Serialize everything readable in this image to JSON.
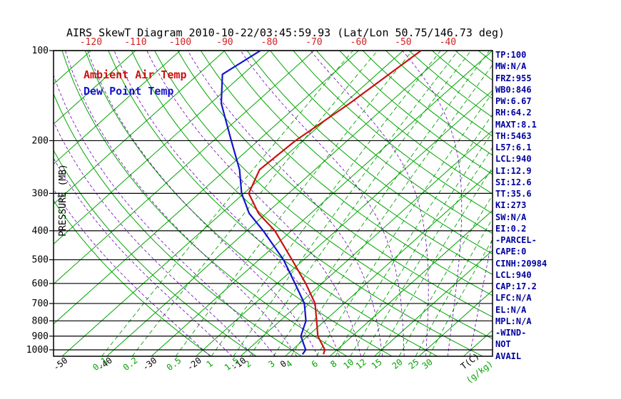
{
  "title": "AIRS SkewT Diagram 2010-10-22/03:45:59.93 (Lat/Lon 50.75/146.73 deg)",
  "legend": {
    "ambient": "Ambient Air Temp",
    "dewpoint": "Dew Point Temp"
  },
  "axes": {
    "pressure_label": "PRESSURE (MB)",
    "pressure_ticks": [
      100,
      200,
      300,
      400,
      500,
      600,
      700,
      800,
      900,
      1000
    ],
    "top_temp_ticks": [
      -120,
      -110,
      -100,
      -90,
      -80,
      -70,
      -60,
      -50,
      -40
    ],
    "bottom_temp_ticks": [
      -50,
      -40,
      -30,
      -20,
      -10,
      0
    ],
    "temp_unit": "T(C)",
    "mixing_unit": "(g/kg)"
  },
  "right_panel": {
    "lines": [
      "TP:100",
      "MW:N/A",
      "FRZ:955",
      "WB0:846",
      "PW:6.67",
      "RH:64.2",
      "MAXT:8.1",
      "TH:5463",
      "L57:6.1",
      "LCL:940",
      "LI:12.9",
      "SI:12.6",
      "TT:35.6",
      "KI:273",
      "SW:N/A",
      "EI:0.2",
      "-PARCEL-",
      "CAPE:0",
      "CINH:20984",
      "LCL:940",
      "CAP:17.2",
      "LFC:N/A",
      "EL:N/A",
      "MPL:N/A",
      "-WIND-",
      "NOT",
      "AVAIL"
    ]
  },
  "colors": {
    "grid_green": "#00a500",
    "moist_violet": "#6a00b8",
    "isotherm_label_red": "#d42020",
    "annotation_navy": "#0000a0",
    "axis_black": "#000000"
  },
  "chart_data": {
    "type": "line",
    "title": "AIRS SkewT Diagram 2010-10-22/03:45:59.93 (Lat/Lon 50.75/146.73 deg)",
    "xlabel": "T(C)",
    "ylabel": "PRESSURE (MB)",
    "y_axis": {
      "scale": "log",
      "range_mb": [
        100,
        1050
      ],
      "ticks": [
        100,
        200,
        300,
        400,
        500,
        600,
        700,
        800,
        900,
        1000
      ]
    },
    "x_axis": {
      "skewed": true,
      "surface_range_c": [
        -55,
        45
      ]
    },
    "legend_position": "upper-left-inside",
    "series": [
      {
        "name": "Ambient Air Temp",
        "color": "#cc1111",
        "pressure_mb": [
          1035,
          1000,
          900,
          800,
          700,
          600,
          500,
          400,
          350,
          300,
          250,
          200,
          150,
          100
        ],
        "temp_c": [
          8.1,
          7.3,
          2.3,
          -1.8,
          -6.5,
          -13.6,
          -22.6,
          -33.7,
          -41.7,
          -48.9,
          -52.4,
          -51.6,
          -48.8,
          -46.0
        ]
      },
      {
        "name": "Dew Point Temp",
        "color": "#1414cc",
        "pressure_mb": [
          1035,
          1000,
          900,
          800,
          700,
          600,
          500,
          400,
          350,
          300,
          250,
          200,
          150,
          120,
          100
        ],
        "temp_c": [
          3.4,
          3.0,
          -1.5,
          -4.2,
          -8.9,
          -16.0,
          -24.5,
          -36.3,
          -43.8,
          -50.5,
          -56.9,
          -66.0,
          -77.6,
          -84.6,
          -82.0
        ]
      }
    ],
    "grid": {
      "isotherms_c": {
        "min": -130,
        "max": 40,
        "step": 10
      },
      "dry_adiabats_k": {
        "min": 253,
        "max": 473,
        "step": 10
      },
      "moist_adiabats_c": {
        "min": -20,
        "max": 40,
        "step": 5
      },
      "mixing_ratio_gkg": [
        0.1,
        0.2,
        0.5,
        1,
        1.5,
        2,
        3,
        4,
        6,
        8,
        10,
        12,
        15,
        20,
        25,
        30
      ]
    }
  }
}
